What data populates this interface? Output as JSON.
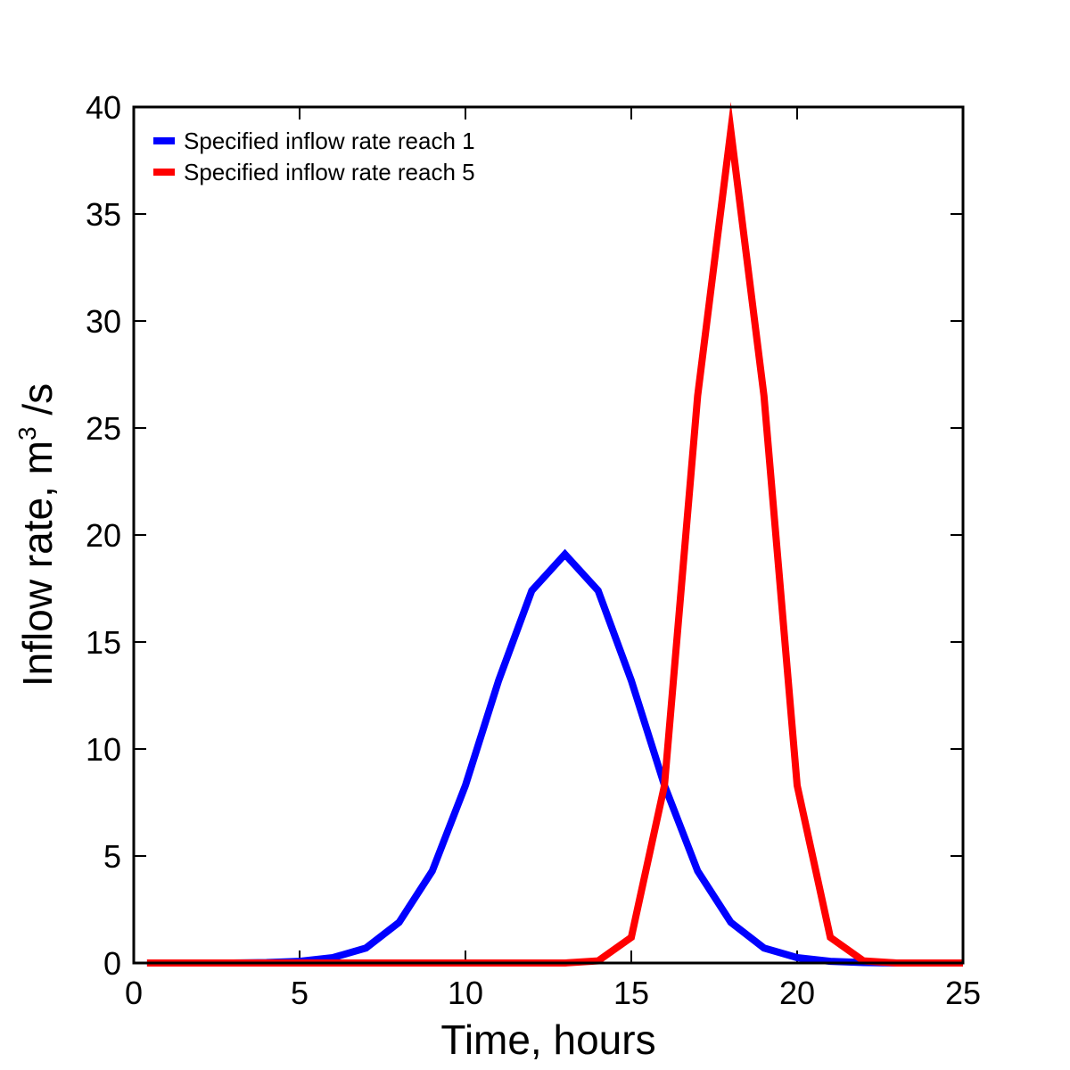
{
  "chart_data": {
    "type": "line",
    "title": "",
    "xlabel": "Time, hours",
    "ylabel_main": "Inflow rate, m",
    "ylabel_sup": "3",
    "ylabel_tail": " /s",
    "xlim": [
      0,
      25
    ],
    "ylim": [
      0,
      40
    ],
    "xticks": [
      0,
      5,
      10,
      15,
      20,
      25
    ],
    "yticks": [
      0,
      5,
      10,
      15,
      20,
      25,
      30,
      35,
      40
    ],
    "grid": false,
    "legend_position": "top-left",
    "series": [
      {
        "name": "Specified inflow rate reach 1",
        "color": "#0000ff",
        "x": [
          0.4,
          1,
          2,
          3,
          4,
          5,
          6,
          7,
          8,
          9,
          10,
          11,
          12,
          13,
          14,
          15,
          16,
          17,
          18,
          19,
          20,
          21,
          22,
          23,
          24,
          25
        ],
        "y": [
          0.0,
          0.0,
          0.0,
          0.0,
          0.02,
          0.08,
          0.25,
          0.7,
          1.9,
          4.3,
          8.3,
          13.2,
          17.4,
          19.1,
          17.4,
          13.2,
          8.3,
          4.3,
          1.9,
          0.7,
          0.25,
          0.08,
          0.02,
          0.0,
          0.0,
          0.0
        ]
      },
      {
        "name": "Specified inflow rate reach 5",
        "color": "#ff0000",
        "x": [
          0.4,
          1,
          2,
          3,
          4,
          5,
          6,
          7,
          8,
          9,
          10,
          11,
          12,
          13,
          14,
          15,
          16,
          17,
          18,
          19,
          20,
          21,
          22,
          23,
          24,
          25
        ],
        "y": [
          0.0,
          0.0,
          0.0,
          0.0,
          0.0,
          0.0,
          0.0,
          0.0,
          0.0,
          0.0,
          0.0,
          0.0,
          0.0,
          0.0,
          0.1,
          1.2,
          8.3,
          26.5,
          38.9,
          26.5,
          8.3,
          1.2,
          0.1,
          0.0,
          0.0,
          0.0
        ]
      }
    ]
  }
}
